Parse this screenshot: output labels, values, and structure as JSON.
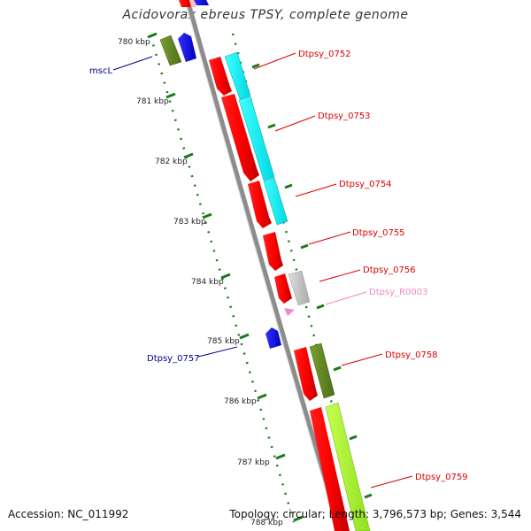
{
  "title": "Acidovorax ebreus TPSY, complete genome",
  "footer": {
    "accession": "Accession: NC_011992",
    "topology": "Topology: circular; Length: 3,796,573 bp; Genes: 3,544"
  },
  "map": {
    "kbp_labels": [
      "780 kbp",
      "781 kbp",
      "782 kbp",
      "783 kbp",
      "784 kbp",
      "785 kbp",
      "786 kbp",
      "787 kbp",
      "788 kbp"
    ],
    "genes": [
      {
        "label": "mscL",
        "color": "#00008b"
      },
      {
        "label": "Dtpsy_0752",
        "color": "#dd0000"
      },
      {
        "label": "Dtpsy_0753",
        "color": "#dd0000"
      },
      {
        "label": "Dtpsy_0754",
        "color": "#dd0000"
      },
      {
        "label": "Dtpsy_0755",
        "color": "#dd0000"
      },
      {
        "label": "Dtpsy_0756",
        "color": "#dd0000"
      },
      {
        "label": "Dtpsy_R0003",
        "color": "#ee88bb"
      },
      {
        "label": "Dtpsy_0757",
        "color": "#00008b"
      },
      {
        "label": "Dtpsy_0758",
        "color": "#dd0000"
      },
      {
        "label": "Dtpsy_0759",
        "color": "#dd0000"
      }
    ],
    "colors": {
      "backbone": "#888888",
      "forward_cds": "#ff0000",
      "reverse_cds": "#0000ff",
      "cyan_track": "#00ffff",
      "olive_track": "#6b8e23",
      "lime_track": "#adff2f",
      "gray_track": "#bbbbbb",
      "rna": "#ee82ee",
      "ticks": "#006400"
    }
  }
}
